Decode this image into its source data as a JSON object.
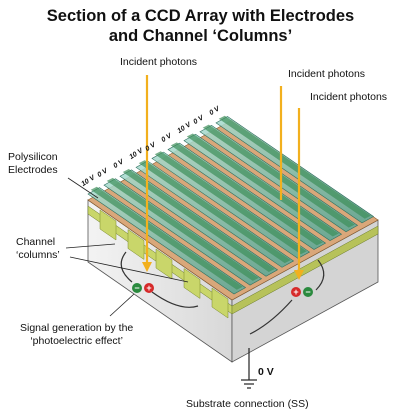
{
  "title": {
    "line1": "Section of a CCD Array with Electrodes",
    "line2": "and Channel ‘Columns’"
  },
  "labels": {
    "incident_photons_1": "Incident photons",
    "incident_photons_2": "Incident photons",
    "incident_photons_3": "Incident photons",
    "polysilicon_line1": "Polysilicon",
    "polysilicon_line2": "Electrodes",
    "channel_line1": "Channel",
    "channel_line2": "‘columns’",
    "signal_line1": "Signal generation by the",
    "signal_line2": "‘photoelectric effect’",
    "ground_voltage": "0 V",
    "substrate": "Substrate connection (SS)"
  },
  "electrode_voltages": [
    "10 V",
    "0 V",
    "0 V",
    "10 V",
    "0 V",
    "0 V",
    "10 V",
    "0 V",
    "0 V"
  ],
  "charges": {
    "left_pair": [
      "−",
      "+"
    ],
    "right_pair": [
      "+",
      "−"
    ]
  },
  "colors": {
    "photon_arrow": "#f2b01e",
    "electrode": "#6fbfae",
    "channel": "#c9d66a",
    "substrate": "#e6e6e6",
    "negative": "#2a8a3e",
    "positive": "#d62a2a"
  }
}
